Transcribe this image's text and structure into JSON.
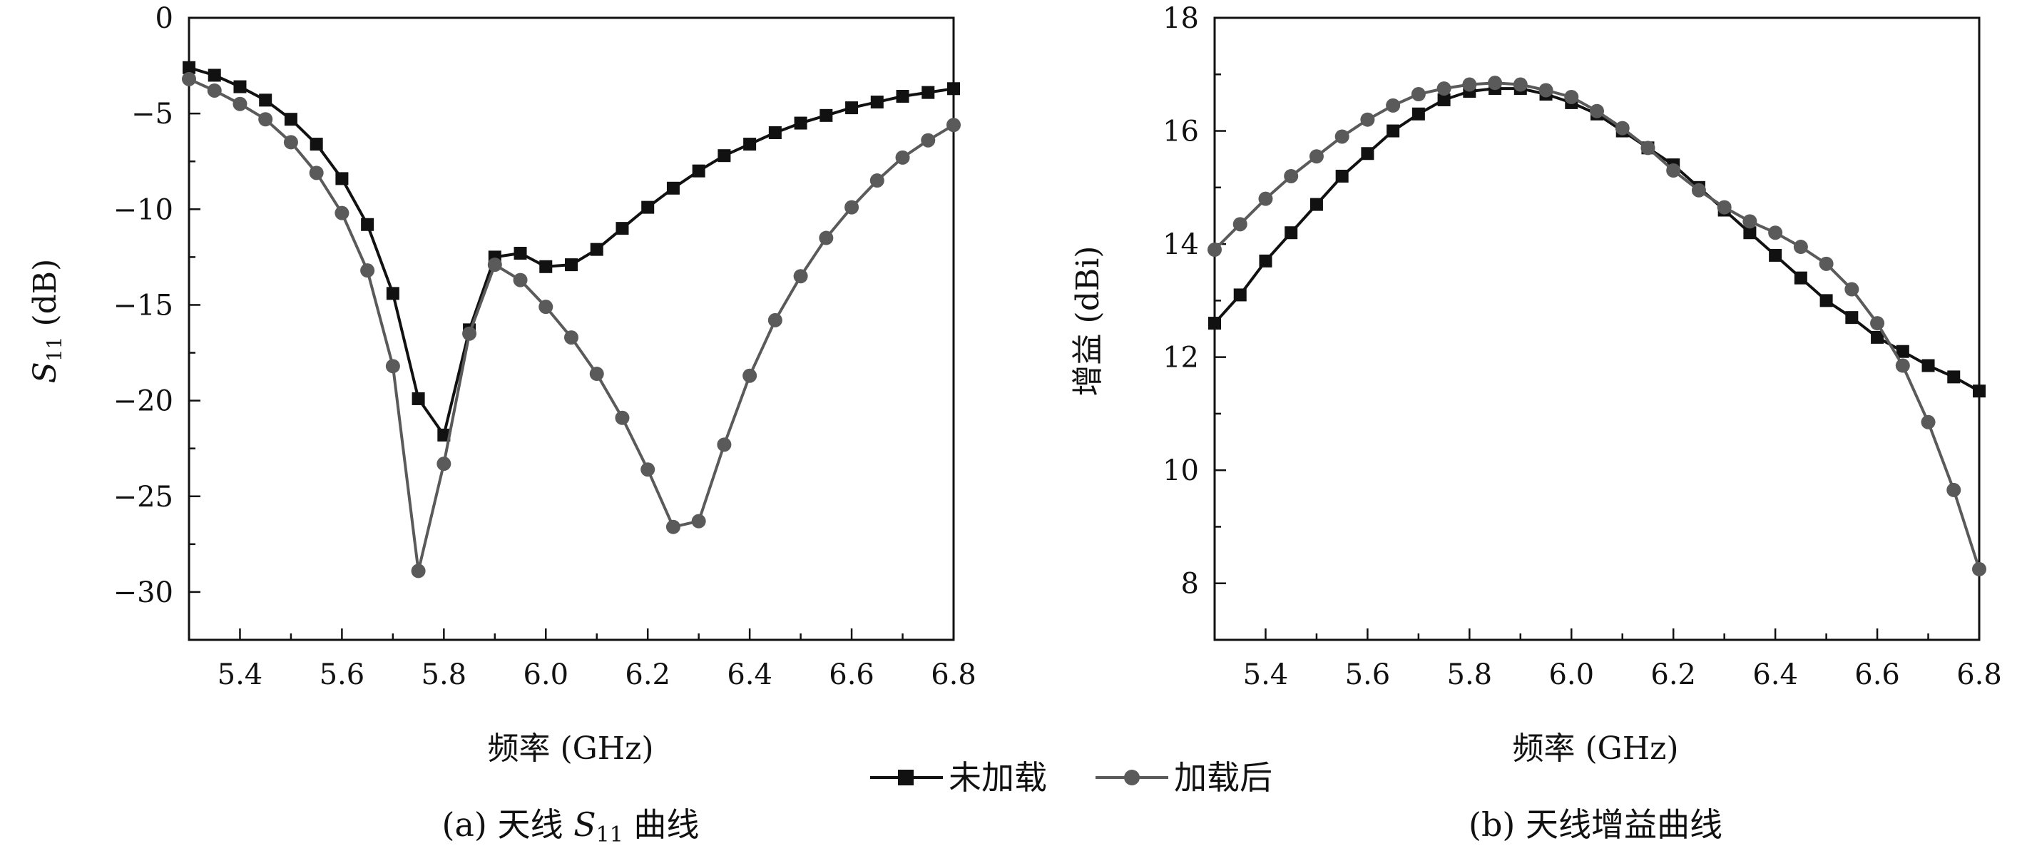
{
  "chart_data": [
    {
      "type": "line",
      "id": "s11",
      "xlabel": "频率 (GHz)",
      "ylabel_main": "S",
      "ylabel_sub": "11",
      "ylabel_unit": " (dB)",
      "caption_prefix": "(a) 天线 ",
      "caption_var": "S",
      "caption_sub": "11",
      "caption_suffix": " 曲线",
      "xlim": [
        5.3,
        6.8
      ],
      "ylim": [
        -32.5,
        0
      ],
      "xticks": [
        5.4,
        5.6,
        5.8,
        6.0,
        6.2,
        6.4,
        6.6,
        6.8
      ],
      "xtick_labels": [
        "5.4",
        "5.6",
        "5.8",
        "6.0",
        "6.2",
        "6.4",
        "6.6",
        "6.8"
      ],
      "yticks": [
        0,
        -5,
        -10,
        -15,
        -20,
        -25,
        -30
      ],
      "ytick_labels": [
        "0",
        "−5",
        "−10",
        "−15",
        "−20",
        "−25",
        "−30"
      ],
      "grid": false,
      "series": [
        {
          "name": "未加载",
          "marker": "square",
          "color": "#111111",
          "x": [
            5.3,
            5.35,
            5.4,
            5.45,
            5.5,
            5.55,
            5.6,
            5.65,
            5.7,
            5.75,
            5.8,
            5.85,
            5.9,
            5.95,
            6.0,
            6.05,
            6.1,
            6.15,
            6.2,
            6.25,
            6.3,
            6.35,
            6.4,
            6.45,
            6.5,
            6.55,
            6.6,
            6.65,
            6.7,
            6.75,
            6.8
          ],
          "y": [
            -2.6,
            -3.0,
            -3.6,
            -4.3,
            -5.3,
            -6.6,
            -8.4,
            -10.8,
            -14.4,
            -19.9,
            -21.8,
            -16.3,
            -12.5,
            -12.3,
            -13.0,
            -12.9,
            -12.1,
            -11.0,
            -9.9,
            -8.9,
            -8.0,
            -7.2,
            -6.6,
            -6.0,
            -5.5,
            -5.1,
            -4.7,
            -4.4,
            -4.1,
            -3.9,
            -3.7
          ]
        },
        {
          "name": "加载后",
          "marker": "circle",
          "color": "#5a5a5a",
          "x": [
            5.3,
            5.35,
            5.4,
            5.45,
            5.5,
            5.55,
            5.6,
            5.65,
            5.7,
            5.75,
            5.8,
            5.85,
            5.9,
            5.95,
            6.0,
            6.05,
            6.1,
            6.15,
            6.2,
            6.25,
            6.3,
            6.35,
            6.4,
            6.45,
            6.5,
            6.55,
            6.6,
            6.65,
            6.7,
            6.75,
            6.8
          ],
          "y": [
            -3.2,
            -3.8,
            -4.5,
            -5.3,
            -6.5,
            -8.1,
            -10.2,
            -13.2,
            -18.2,
            -28.9,
            -23.3,
            -16.5,
            -12.9,
            -13.7,
            -15.1,
            -16.7,
            -18.6,
            -20.9,
            -23.6,
            -26.6,
            -26.3,
            -22.3,
            -18.7,
            -15.8,
            -13.5,
            -11.5,
            -9.9,
            -8.5,
            -7.3,
            -6.4,
            -5.6
          ]
        }
      ]
    },
    {
      "type": "line",
      "id": "gain",
      "xlabel": "频率 (GHz)",
      "ylabel": "增益 (dBi)",
      "caption": "(b) 天线增益曲线",
      "xlim": [
        5.3,
        6.8
      ],
      "ylim": [
        7,
        18
      ],
      "xticks": [
        5.4,
        5.6,
        5.8,
        6.0,
        6.2,
        6.4,
        6.6,
        6.8
      ],
      "xtick_labels": [
        "5.4",
        "5.6",
        "5.8",
        "6.0",
        "6.2",
        "6.4",
        "6.6",
        "6.8"
      ],
      "yticks": [
        8,
        10,
        12,
        14,
        16,
        18
      ],
      "ytick_labels": [
        "8",
        "10",
        "12",
        "14",
        "16",
        "18"
      ],
      "grid": false,
      "series": [
        {
          "name": "未加载",
          "marker": "square",
          "color": "#111111",
          "x": [
            5.3,
            5.35,
            5.4,
            5.45,
            5.5,
            5.55,
            5.6,
            5.65,
            5.7,
            5.75,
            5.8,
            5.85,
            5.9,
            5.95,
            6.0,
            6.05,
            6.1,
            6.15,
            6.2,
            6.25,
            6.3,
            6.35,
            6.4,
            6.45,
            6.5,
            6.55,
            6.6,
            6.65,
            6.7,
            6.75,
            6.8
          ],
          "y": [
            12.6,
            13.1,
            13.7,
            14.2,
            14.7,
            15.2,
            15.6,
            16.0,
            16.3,
            16.55,
            16.7,
            16.75,
            16.75,
            16.65,
            16.5,
            16.3,
            16.0,
            15.7,
            15.4,
            15.0,
            14.6,
            14.2,
            13.8,
            13.4,
            13.0,
            12.7,
            12.35,
            12.1,
            11.85,
            11.65,
            11.4
          ]
        },
        {
          "name": "加载后",
          "marker": "circle",
          "color": "#5a5a5a",
          "x": [
            5.3,
            5.35,
            5.4,
            5.45,
            5.5,
            5.55,
            5.6,
            5.65,
            5.7,
            5.75,
            5.8,
            5.85,
            5.9,
            5.95,
            6.0,
            6.05,
            6.1,
            6.15,
            6.2,
            6.25,
            6.3,
            6.35,
            6.4,
            6.45,
            6.5,
            6.55,
            6.6,
            6.65,
            6.7,
            6.75,
            6.8
          ],
          "y": [
            13.9,
            14.35,
            14.8,
            15.2,
            15.55,
            15.9,
            16.2,
            16.45,
            16.65,
            16.75,
            16.82,
            16.85,
            16.82,
            16.72,
            16.6,
            16.35,
            16.05,
            15.7,
            15.3,
            14.95,
            14.65,
            14.4,
            14.2,
            13.95,
            13.65,
            13.2,
            12.6,
            11.85,
            10.85,
            9.65,
            8.25
          ]
        }
      ]
    }
  ],
  "legend": {
    "position": "bottom-center",
    "items": [
      {
        "label": "未加载",
        "marker": "square",
        "color": "#111111"
      },
      {
        "label": "加载后",
        "marker": "circle",
        "color": "#5a5a5a"
      }
    ]
  }
}
